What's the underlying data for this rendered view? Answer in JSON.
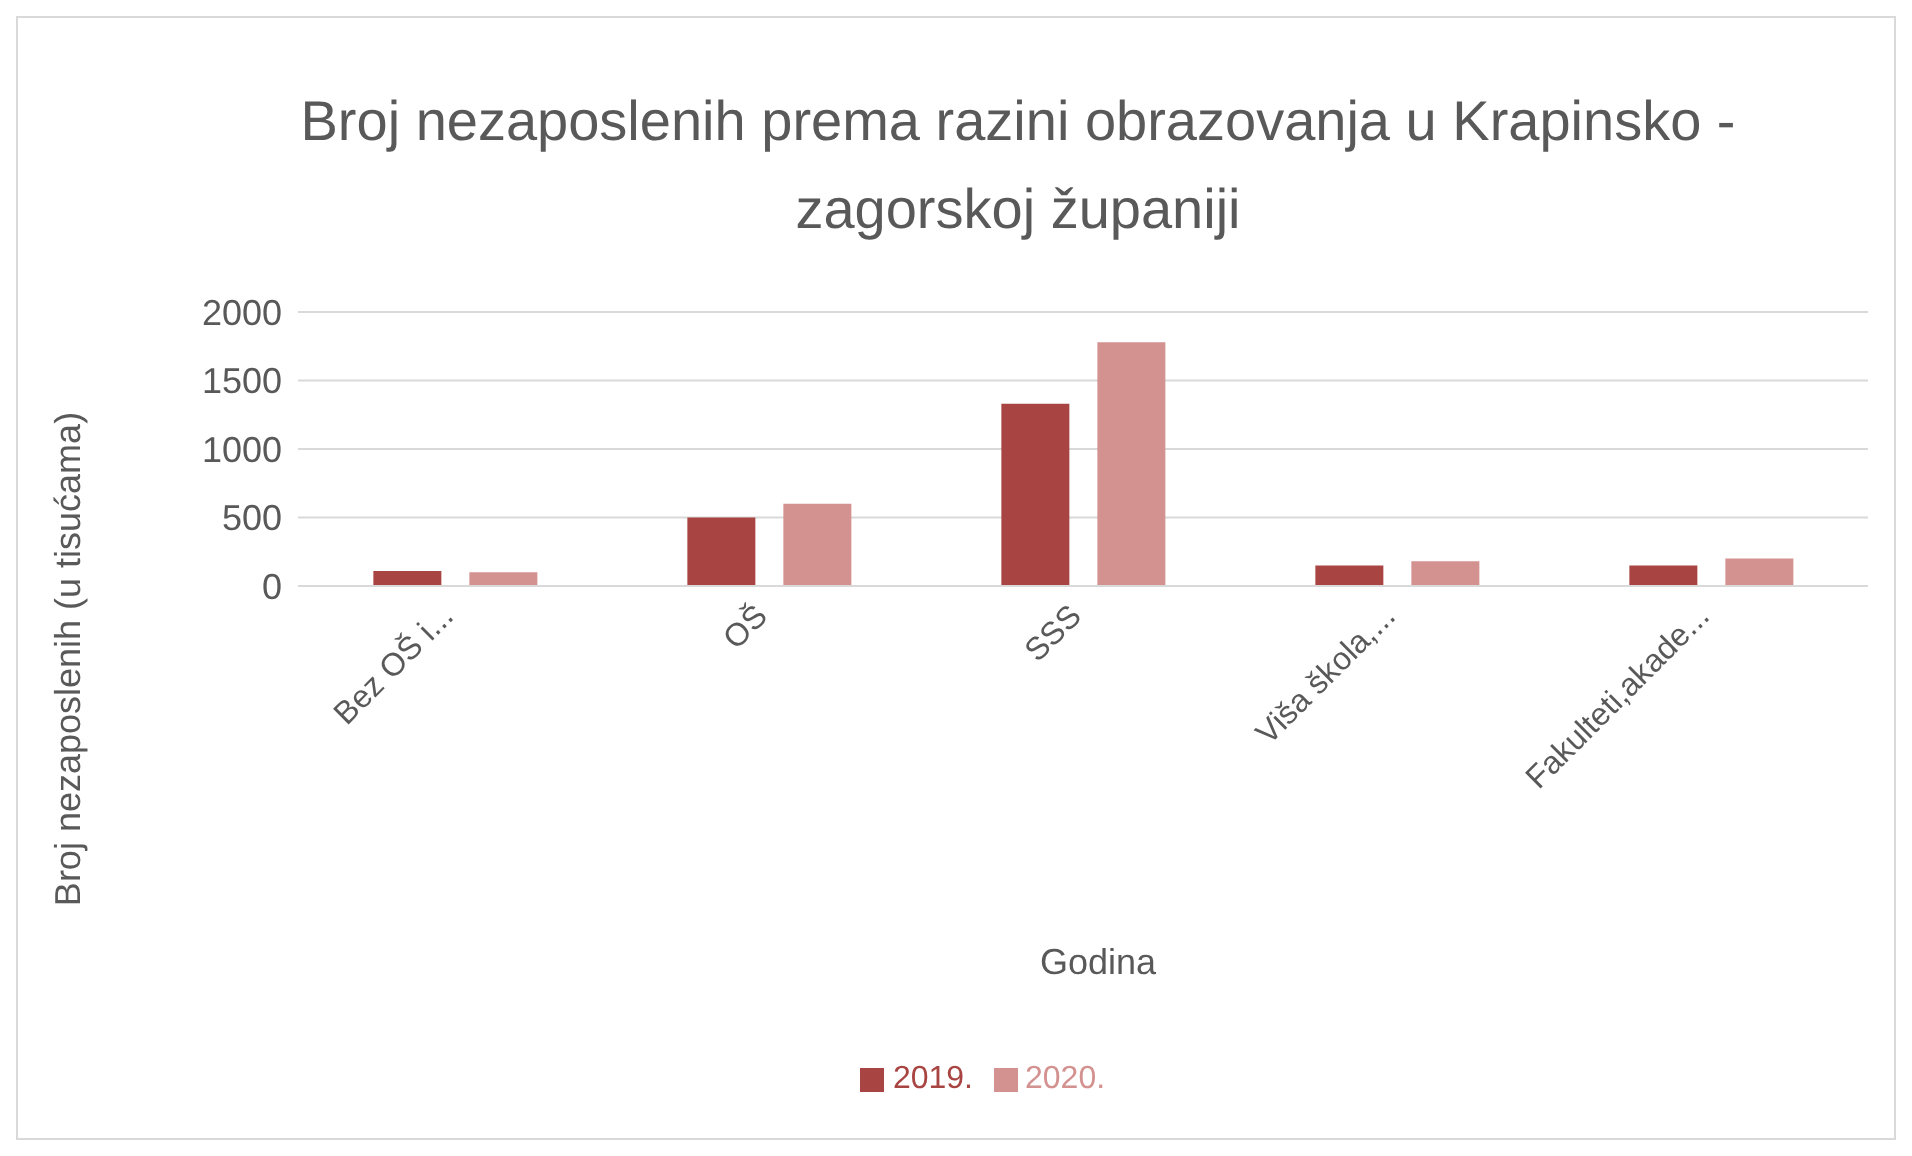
{
  "chart_data": {
    "type": "bar",
    "title": "Broj nezaposlenih prema razini obrazovanja u Krapinsko - zagorskoj županiji",
    "xlabel": "Godina",
    "ylabel": "Broj nezaposlenih (u tisućama)",
    "categories": [
      "Bez OŠ i...",
      "OŠ",
      "SSS",
      "Viša škola,...",
      "Fakulteti,akade..."
    ],
    "series": [
      {
        "name": "2019.",
        "color": "#a84543",
        "values": [
          110,
          500,
          1330,
          150,
          150
        ]
      },
      {
        "name": "2020.",
        "color": "#d39190",
        "values": [
          100,
          600,
          1780,
          180,
          200
        ]
      }
    ],
    "ylim": [
      0,
      2000
    ],
    "yticks": [
      0,
      500,
      1000,
      1500,
      2000
    ],
    "grid": "y",
    "legend": "bottom"
  }
}
